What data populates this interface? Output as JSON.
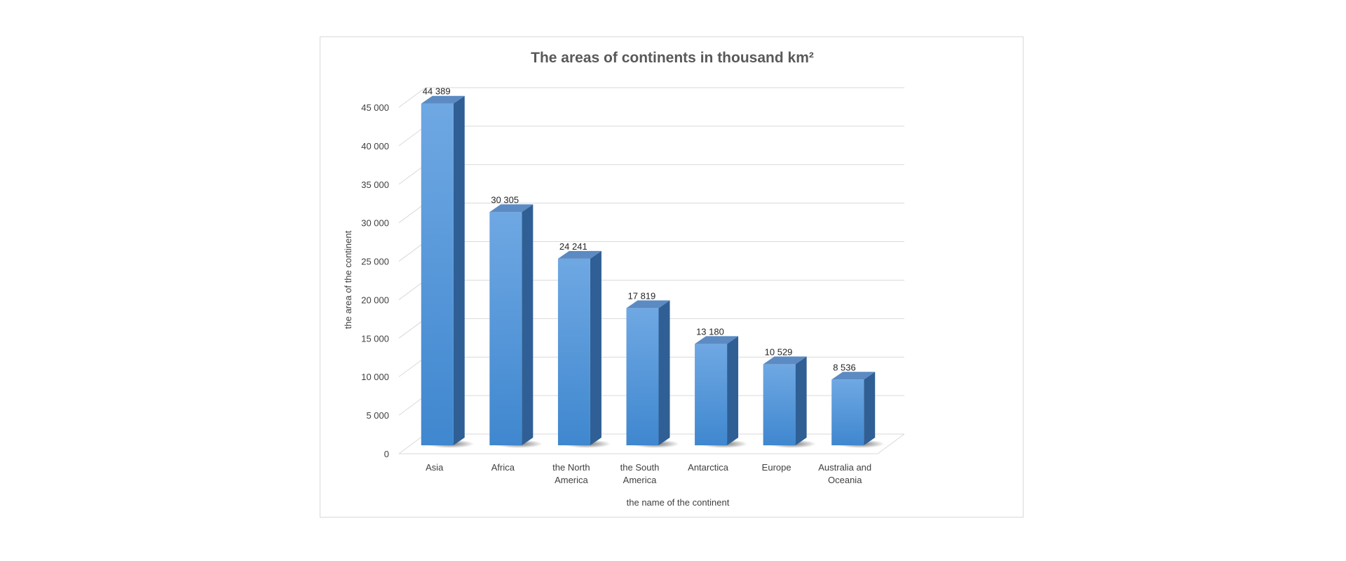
{
  "chart_data": {
    "type": "bar",
    "title": "The areas of continents in thousand km²",
    "xlabel": "the name of the continent",
    "ylabel": "the area of the continent",
    "categories": [
      [
        "Asia"
      ],
      [
        "Africa"
      ],
      [
        "the North",
        "America"
      ],
      [
        "the South",
        "America"
      ],
      [
        "Antarctica"
      ],
      [
        "Europe"
      ],
      [
        "Australia and",
        "Oceania"
      ]
    ],
    "values": [
      44389,
      30305,
      24241,
      17819,
      13180,
      10529,
      8536
    ],
    "data_labels": [
      "44 389",
      "30 305",
      "24 241",
      "17 819",
      "13 180",
      "10 529",
      "8 536"
    ],
    "yticks": [
      0,
      5000,
      10000,
      15000,
      20000,
      25000,
      30000,
      35000,
      40000,
      45000
    ],
    "ytick_labels": [
      "0",
      "5 000",
      "10 000",
      "15 000",
      "20 000",
      "25 000",
      "30 000",
      "35 000",
      "40 000",
      "45 000"
    ],
    "ylim": [
      0,
      45000
    ],
    "grid": true,
    "legend": "none",
    "colors": {
      "bar_front_top": "#6fa8e3",
      "bar_front_bottom": "#3f87cf",
      "bar_side": "#2f5f94",
      "bar_top": "#5c8ac2",
      "grid": "#d9d9d9",
      "text": "#404040"
    }
  }
}
